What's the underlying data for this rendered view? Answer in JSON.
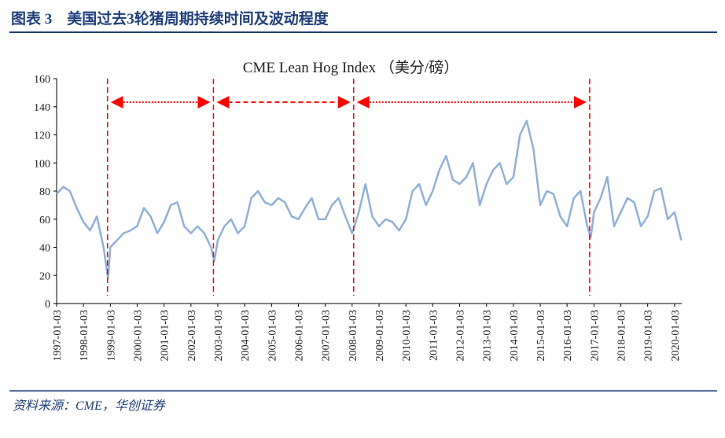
{
  "header": {
    "title": "图表 3　美国过去3轮猪周期持续时间及波动程度"
  },
  "chart_data": {
    "type": "line",
    "title": "CME Lean Hog Index （美分/磅）",
    "color": "#8fb0d8",
    "x": [
      "1997-01-03",
      "1997-04-03",
      "1997-07-03",
      "1997-10-03",
      "1998-01-03",
      "1998-04-03",
      "1998-07-03",
      "1998-10-03",
      "1998-12-03",
      "1999-01-03",
      "1999-04-03",
      "1999-07-03",
      "1999-10-03",
      "2000-01-03",
      "2000-04-03",
      "2000-07-03",
      "2000-10-03",
      "2001-01-03",
      "2001-04-03",
      "2001-07-03",
      "2001-10-03",
      "2002-01-03",
      "2002-04-03",
      "2002-07-03",
      "2002-10-03",
      "2002-11-15",
      "2003-01-03",
      "2003-04-03",
      "2003-07-03",
      "2003-10-03",
      "2004-01-03",
      "2004-04-03",
      "2004-07-03",
      "2004-10-03",
      "2005-01-03",
      "2005-04-03",
      "2005-07-03",
      "2005-10-03",
      "2006-01-03",
      "2006-04-03",
      "2006-07-03",
      "2006-10-03",
      "2007-01-03",
      "2007-04-03",
      "2007-07-03",
      "2007-10-03",
      "2008-01-03",
      "2008-04-03",
      "2008-07-03",
      "2008-10-03",
      "2009-01-03",
      "2009-04-03",
      "2009-07-03",
      "2009-10-03",
      "2010-01-03",
      "2010-04-03",
      "2010-07-03",
      "2010-10-03",
      "2011-01-03",
      "2011-04-03",
      "2011-07-03",
      "2011-10-03",
      "2012-01-03",
      "2012-04-03",
      "2012-07-03",
      "2012-10-03",
      "2013-01-03",
      "2013-04-03",
      "2013-07-03",
      "2013-10-03",
      "2014-01-03",
      "2014-04-03",
      "2014-07-03",
      "2014-10-03",
      "2015-01-03",
      "2015-04-03",
      "2015-07-03",
      "2015-10-03",
      "2016-01-03",
      "2016-04-03",
      "2016-07-03",
      "2016-10-03",
      "2016-11-20",
      "2017-01-03",
      "2017-04-03",
      "2017-07-03",
      "2017-10-03",
      "2018-01-03",
      "2018-04-03",
      "2018-07-03",
      "2018-10-03",
      "2019-01-03",
      "2019-04-03",
      "2019-07-03",
      "2019-10-03",
      "2020-01-03",
      "2020-04-03"
    ],
    "values": [
      78,
      83,
      80,
      68,
      58,
      52,
      62,
      40,
      18,
      40,
      45,
      50,
      52,
      55,
      68,
      62,
      50,
      58,
      70,
      72,
      55,
      50,
      55,
      50,
      40,
      30,
      45,
      55,
      60,
      50,
      55,
      75,
      80,
      72,
      70,
      75,
      72,
      62,
      60,
      68,
      75,
      60,
      60,
      70,
      75,
      62,
      50,
      65,
      85,
      62,
      55,
      60,
      58,
      52,
      60,
      80,
      85,
      70,
      80,
      95,
      105,
      88,
      85,
      90,
      100,
      70,
      85,
      95,
      100,
      85,
      90,
      120,
      130,
      110,
      70,
      80,
      78,
      62,
      55,
      75,
      80,
      55,
      47,
      65,
      75,
      90,
      55,
      65,
      75,
      72,
      55,
      62,
      80,
      82,
      60,
      65,
      45
    ],
    "xlim": [
      "1997-01-03",
      "2020-04-10"
    ],
    "xticks": [
      "1997-01-03",
      "1998-01-03",
      "1999-01-03",
      "2000-01-03",
      "2001-01-03",
      "2002-01-03",
      "2003-01-03",
      "2004-01-03",
      "2005-01-03",
      "2006-01-03",
      "2007-01-03",
      "2008-01-03",
      "2009-01-03",
      "2010-01-03",
      "2011-01-03",
      "2012-01-03",
      "2013-01-03",
      "2014-01-03",
      "2015-01-03",
      "2016-01-03",
      "2017-01-03",
      "2018-01-03",
      "2019-01-03",
      "2020-01-03"
    ],
    "ylim": [
      0,
      160
    ],
    "yticks": [
      0,
      20,
      40,
      60,
      80,
      100,
      120,
      140,
      160
    ],
    "cycle_lines": [
      "1998-11-26",
      "2002-11-05",
      "2008-01-24",
      "2016-11-05"
    ],
    "cycle_line_color": "#ff0000"
  },
  "footer": {
    "source": "资料来源：CME，华创证券"
  }
}
